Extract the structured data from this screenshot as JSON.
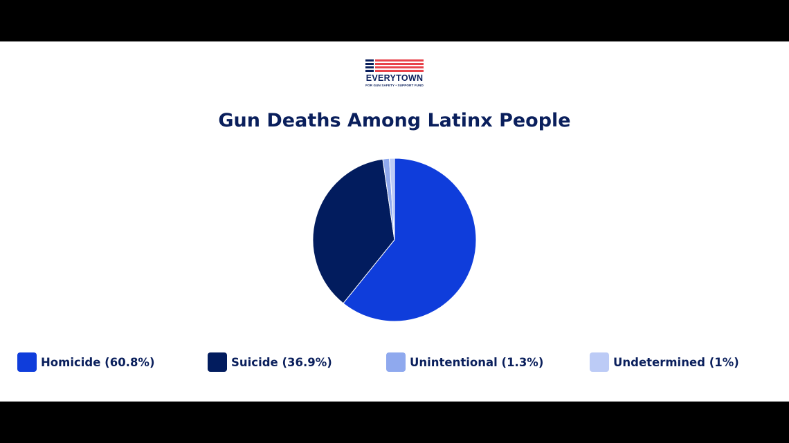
{
  "logo": {
    "wordmark": "EVERYTOWN",
    "tagline": "FOR GUN SAFETY • SUPPORT FUND"
  },
  "colors": {
    "navy": "#0a1f5c",
    "flag_red": "#e8434a",
    "background": "#ffffff",
    "letterbox": "#000000"
  },
  "chart_data": {
    "type": "pie",
    "title": "Gun Deaths Among Latinx People",
    "legend_position": "bottom",
    "slices": [
      {
        "label": "Homicide (60.8%)",
        "value": 60.8,
        "color": "#0f3ddb"
      },
      {
        "label": "Suicide (36.9%)",
        "value": 36.9,
        "color": "#021c5e"
      },
      {
        "label": "Unintentional (1.3%)",
        "value": 1.3,
        "color": "#8fa9ee"
      },
      {
        "label": "Undetermined (1%)",
        "value": 1,
        "color": "#bccbf6"
      }
    ]
  }
}
